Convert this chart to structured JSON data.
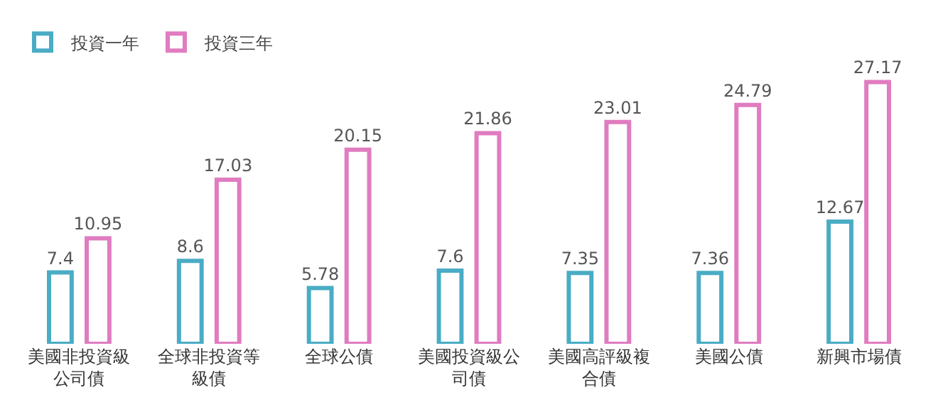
{
  "chart_data": {
    "type": "bar",
    "categories": [
      "美國非投資級公司債",
      "全球非投資等級債",
      "全球公債",
      "美國投資級公司債",
      "美國高評級複合債",
      "美國公債",
      "新興市場債"
    ],
    "series": [
      {
        "name": "投資一年",
        "color": "#4aacc5",
        "values": [
          7.4,
          8.6,
          5.78,
          7.6,
          7.35,
          7.36,
          12.67
        ]
      },
      {
        "name": "投資三年",
        "color": "#e07cc0",
        "values": [
          10.95,
          17.03,
          20.15,
          21.86,
          23.01,
          24.79,
          27.17
        ]
      }
    ],
    "data_labels": true,
    "legend": "top left",
    "grid": false
  }
}
